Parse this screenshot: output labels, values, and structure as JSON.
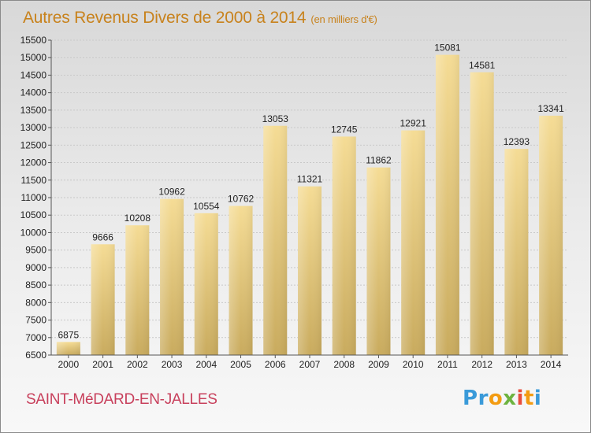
{
  "header": {
    "title": "Autres Revenus Divers de 2000 à 2014",
    "unit": "(en milliers d'€)"
  },
  "footer": {
    "city": "SAINT-MéDARD-EN-JALLES",
    "logo": {
      "letters": [
        "P",
        "r",
        "o",
        "x",
        "i",
        "t",
        "i"
      ],
      "colors": [
        "#3a9ad9",
        "#3a9ad9",
        "#f39c12",
        "#6db33f",
        "#e84c3d",
        "#f39c12",
        "#3a9ad9"
      ]
    }
  },
  "chart_data": {
    "type": "bar",
    "categories": [
      "2000",
      "2001",
      "2002",
      "2003",
      "2004",
      "2005",
      "2006",
      "2007",
      "2008",
      "2009",
      "2010",
      "2011",
      "2012",
      "2013",
      "2014"
    ],
    "values": [
      6875,
      9666,
      10208,
      10962,
      10554,
      10762,
      13053,
      11321,
      12745,
      11862,
      12921,
      15081,
      14581,
      12393,
      13341
    ],
    "ylim": [
      6500,
      15500
    ],
    "yticks": [
      6500,
      7000,
      7500,
      8000,
      8500,
      9000,
      9500,
      10000,
      10500,
      11000,
      11500,
      12000,
      12500,
      13000,
      13500,
      14000,
      14500,
      15000,
      15500
    ],
    "grid": true,
    "bar_color": "#e0c477"
  }
}
